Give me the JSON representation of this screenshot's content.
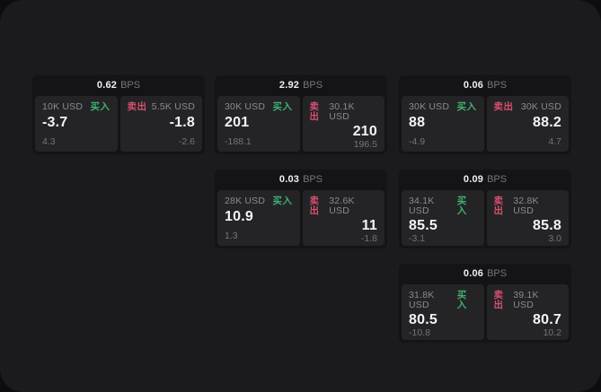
{
  "window": {
    "bps_suffix": "BPS",
    "buy_label": "买入",
    "sell_label": "卖出"
  },
  "colors": {
    "window_bg": "#1b1b1d",
    "card_bg": "#141416",
    "panel_bg": "#242427",
    "buy_green": "#41b06e",
    "sell_red": "#d64f6d"
  },
  "cards": [
    {
      "bps": "0.62",
      "buy": {
        "amount": "10K USD",
        "main": "-3.7",
        "sub": "4.3"
      },
      "sell": {
        "amount": "5.5K USD",
        "main": "-1.8",
        "sub": "-2.6"
      }
    },
    {
      "bps": "2.92",
      "buy": {
        "amount": "30K USD",
        "main": "201",
        "sub": "-188.1"
      },
      "sell": {
        "amount": "30.1K USD",
        "main": "210",
        "sub": "196.5"
      }
    },
    {
      "bps": "0.06",
      "buy": {
        "amount": "30K USD",
        "main": "88",
        "sub": "-4.9"
      },
      "sell": {
        "amount": "30K USD",
        "main": "88.2",
        "sub": "4.7"
      }
    },
    {
      "bps": "0.03",
      "buy": {
        "amount": "28K USD",
        "main": "10.9",
        "sub": "1.3"
      },
      "sell": {
        "amount": "32.6K USD",
        "main": "11",
        "sub": "-1.8"
      }
    },
    {
      "bps": "0.09",
      "buy": {
        "amount": "34.1K USD",
        "main": "85.5",
        "sub": "-3.1"
      },
      "sell": {
        "amount": "32.8K USD",
        "main": "85.8",
        "sub": "3.0"
      }
    },
    {
      "bps": "0.06",
      "buy": {
        "amount": "31.8K USD",
        "main": "80.5",
        "sub": "-10.8"
      },
      "sell": {
        "amount": "39.1K USD",
        "main": "80.7",
        "sub": "10.2"
      }
    }
  ]
}
